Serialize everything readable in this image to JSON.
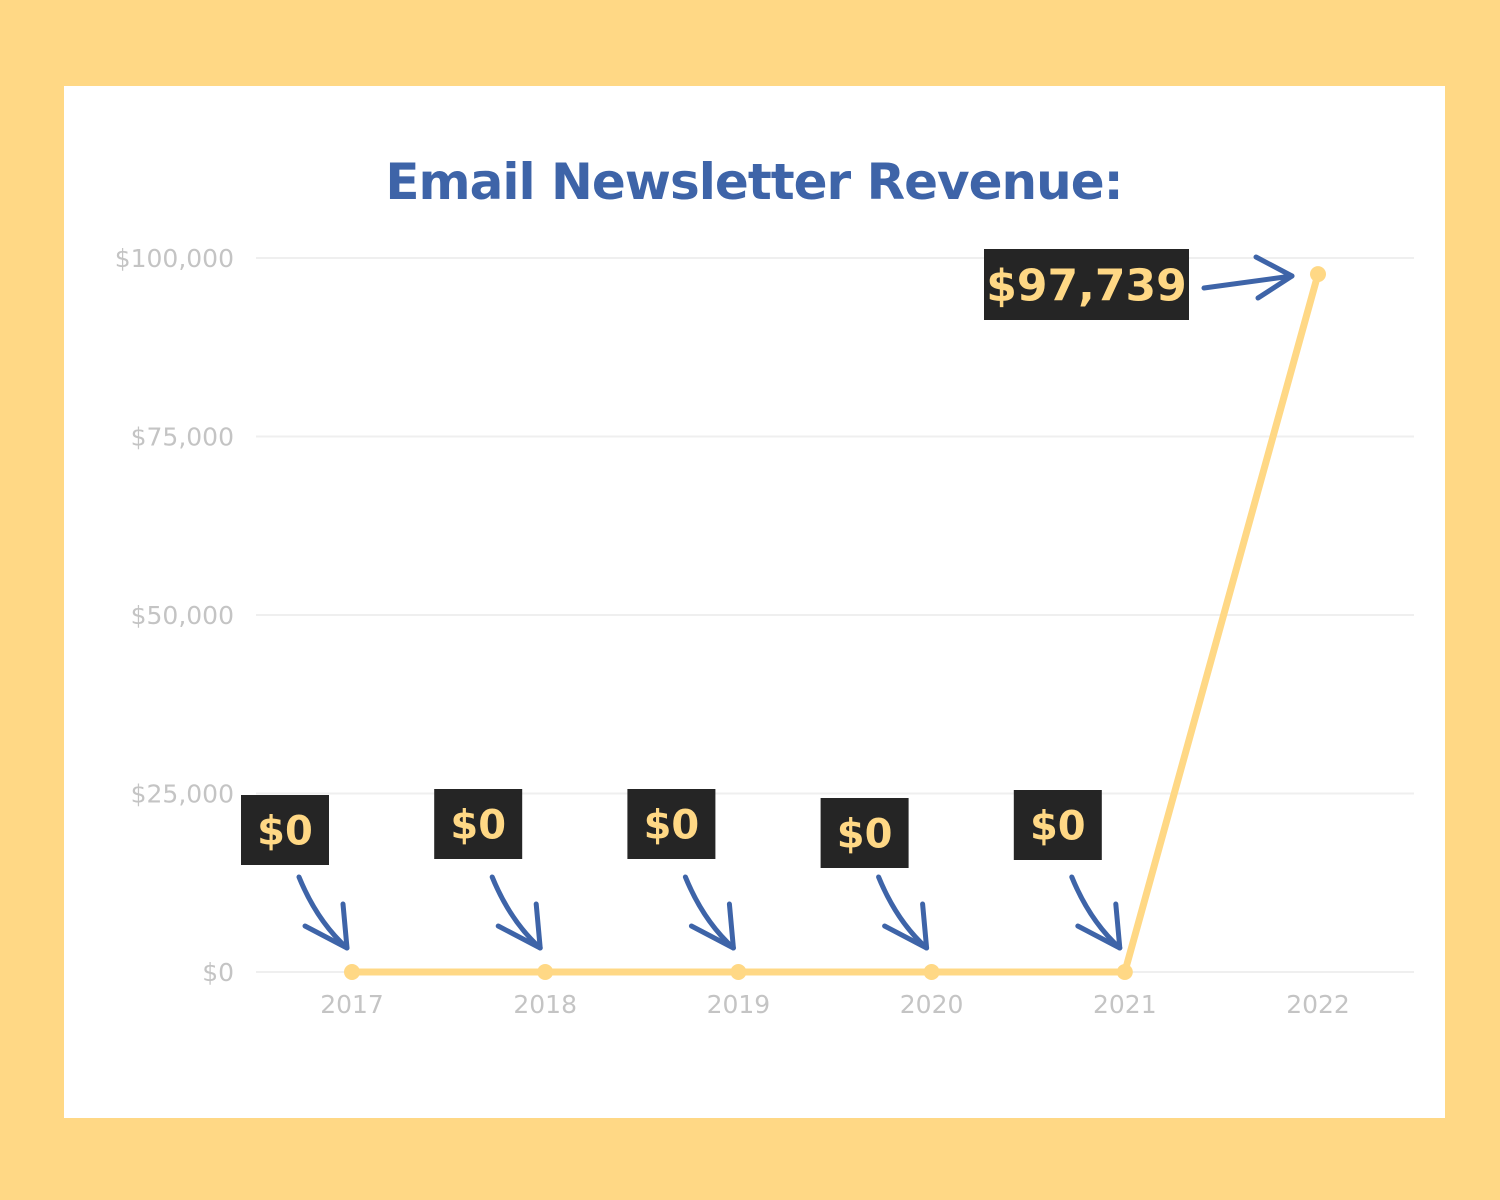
{
  "chart_data": {
    "type": "line",
    "title": "Email Newsletter Revenue:",
    "xlabel": "",
    "ylabel": "",
    "categories": [
      "2017",
      "2018",
      "2019",
      "2020",
      "2021",
      "2022"
    ],
    "values": [
      0,
      0,
      0,
      0,
      0,
      97739
    ],
    "ylim": [
      0,
      100000
    ],
    "y_ticks": [
      0,
      25000,
      50000,
      75000,
      100000
    ],
    "y_tick_labels": [
      "$0",
      "$25,000",
      "$50,000",
      "$75,000",
      "$100,000"
    ],
    "grid": true,
    "legend": "none",
    "annotations": [
      "$0",
      "$0",
      "$0",
      "$0",
      "$0",
      "$97,739"
    ]
  },
  "colors": {
    "background": "#FFD885",
    "card": "#FFFFFF",
    "title": "#3E64A8",
    "line": "#FFD885",
    "gridline": "#EFEFEF",
    "tick_text": "#C4C4C4",
    "callout_bg": "#252525",
    "callout_text": "#FFD885",
    "arrow": "#3E64A8"
  }
}
